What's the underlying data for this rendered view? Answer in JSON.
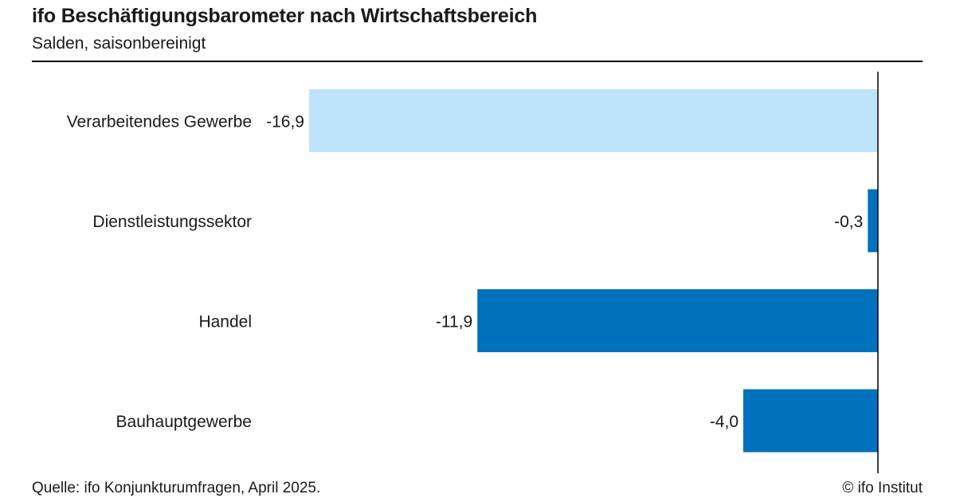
{
  "header": {
    "title": "ifo Beschäftigungsbarometer nach Wirtschaftsbereich",
    "subtitle": "Salden, saisonbereinigt"
  },
  "footer": {
    "source": "Quelle: ifo Konjunkturumfragen, April 2025.",
    "copyright": "© ifo Institut"
  },
  "colors": {
    "highlight_bar": "#bfe3fb",
    "bar": "#0071bc",
    "axis": "#000000"
  },
  "chart_data": {
    "type": "bar",
    "orientation": "horizontal",
    "title": "ifo Beschäftigungsbarometer nach Wirtschaftsbereich",
    "subtitle": "Salden, saisonbereinigt",
    "categories": [
      "Verarbeitendes Gewerbe",
      "Dienstleistungssektor",
      "Handel",
      "Bauhauptgewerbe"
    ],
    "values": [
      -16.9,
      -0.3,
      -11.9,
      -4.0
    ],
    "value_labels": [
      "-16,9",
      "-0,3",
      "-11,9",
      "-4,0"
    ],
    "highlighted_category": "Verarbeitendes Gewerbe",
    "xlim": [
      -17,
      0
    ],
    "grid": false,
    "legend": "none"
  }
}
